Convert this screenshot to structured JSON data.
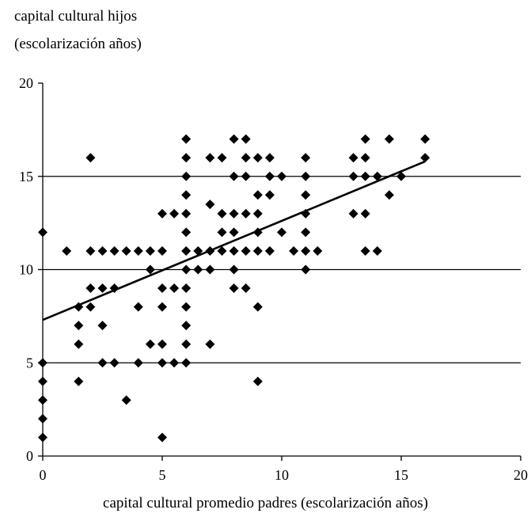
{
  "chart_data": {
    "type": "scatter",
    "ylabel_lines": [
      "capital cultural hijos",
      "(escolarización años)"
    ],
    "xlabel": "capital cultural promedio padres (escolarización años)",
    "xlim": [
      0,
      20
    ],
    "ylim": [
      0,
      20
    ],
    "x_ticks": [
      0,
      5,
      10,
      15,
      20
    ],
    "y_ticks": [
      0,
      5,
      10,
      15,
      20
    ],
    "grid": {
      "horizontal": [
        5,
        10,
        15
      ],
      "vertical": false
    },
    "marker": "diamond",
    "trendline": {
      "type": "linear",
      "x": [
        0,
        16
      ],
      "y": [
        7.3,
        15.8
      ]
    },
    "points": [
      [
        0,
        1
      ],
      [
        0,
        2
      ],
      [
        0,
        3
      ],
      [
        0,
        4
      ],
      [
        0,
        5
      ],
      [
        0,
        12
      ],
      [
        1,
        11
      ],
      [
        1.5,
        4
      ],
      [
        1.5,
        6
      ],
      [
        1.5,
        7
      ],
      [
        1.5,
        8
      ],
      [
        2,
        8
      ],
      [
        2,
        9
      ],
      [
        2,
        11
      ],
      [
        2,
        16
      ],
      [
        2.5,
        5
      ],
      [
        2.5,
        7
      ],
      [
        2.5,
        9
      ],
      [
        2.5,
        11
      ],
      [
        3,
        5
      ],
      [
        3,
        9
      ],
      [
        3,
        11
      ],
      [
        3.5,
        3
      ],
      [
        3.5,
        11
      ],
      [
        4,
        5
      ],
      [
        4,
        8
      ],
      [
        4,
        11
      ],
      [
        4.5,
        6
      ],
      [
        4.5,
        10
      ],
      [
        4.5,
        11
      ],
      [
        5,
        1
      ],
      [
        5,
        5
      ],
      [
        5,
        6
      ],
      [
        5,
        8
      ],
      [
        5,
        9
      ],
      [
        5,
        11
      ],
      [
        5,
        13
      ],
      [
        5.5,
        5
      ],
      [
        5.5,
        9
      ],
      [
        5.5,
        13
      ],
      [
        6,
        5
      ],
      [
        6,
        6
      ],
      [
        6,
        7
      ],
      [
        6,
        8
      ],
      [
        6,
        9
      ],
      [
        6,
        10
      ],
      [
        6,
        11
      ],
      [
        6,
        12
      ],
      [
        6,
        13
      ],
      [
        6,
        14
      ],
      [
        6,
        15
      ],
      [
        6,
        16
      ],
      [
        6,
        17
      ],
      [
        6.5,
        10
      ],
      [
        6.5,
        11
      ],
      [
        7,
        6
      ],
      [
        7,
        10
      ],
      [
        7,
        11
      ],
      [
        7,
        13.5
      ],
      [
        7,
        16
      ],
      [
        7.5,
        11
      ],
      [
        7.5,
        12
      ],
      [
        7.5,
        13
      ],
      [
        7.5,
        16
      ],
      [
        8,
        9
      ],
      [
        8,
        10
      ],
      [
        8,
        11
      ],
      [
        8,
        12
      ],
      [
        8,
        13
      ],
      [
        8,
        15
      ],
      [
        8,
        17
      ],
      [
        8.5,
        9
      ],
      [
        8.5,
        11
      ],
      [
        8.5,
        13
      ],
      [
        8.5,
        15
      ],
      [
        8.5,
        16
      ],
      [
        8.5,
        17
      ],
      [
        9,
        4
      ],
      [
        9,
        8
      ],
      [
        9,
        11
      ],
      [
        9,
        12
      ],
      [
        9,
        13
      ],
      [
        9,
        14
      ],
      [
        9,
        16
      ],
      [
        9.5,
        11
      ],
      [
        9.5,
        14
      ],
      [
        9.5,
        15
      ],
      [
        9.5,
        16
      ],
      [
        10,
        12
      ],
      [
        10,
        15
      ],
      [
        10.5,
        11
      ],
      [
        11,
        10
      ],
      [
        11,
        11
      ],
      [
        11,
        12
      ],
      [
        11,
        13
      ],
      [
        11,
        14
      ],
      [
        11,
        15
      ],
      [
        11,
        16
      ],
      [
        11.5,
        11
      ],
      [
        13,
        13
      ],
      [
        13,
        15
      ],
      [
        13,
        16
      ],
      [
        13.5,
        11
      ],
      [
        13.5,
        13
      ],
      [
        13.5,
        15
      ],
      [
        13.5,
        16
      ],
      [
        13.5,
        17
      ],
      [
        14,
        11
      ],
      [
        14,
        15
      ],
      [
        14.5,
        14
      ],
      [
        14.5,
        17
      ],
      [
        15,
        15
      ],
      [
        16,
        16
      ],
      [
        16,
        17
      ]
    ]
  }
}
